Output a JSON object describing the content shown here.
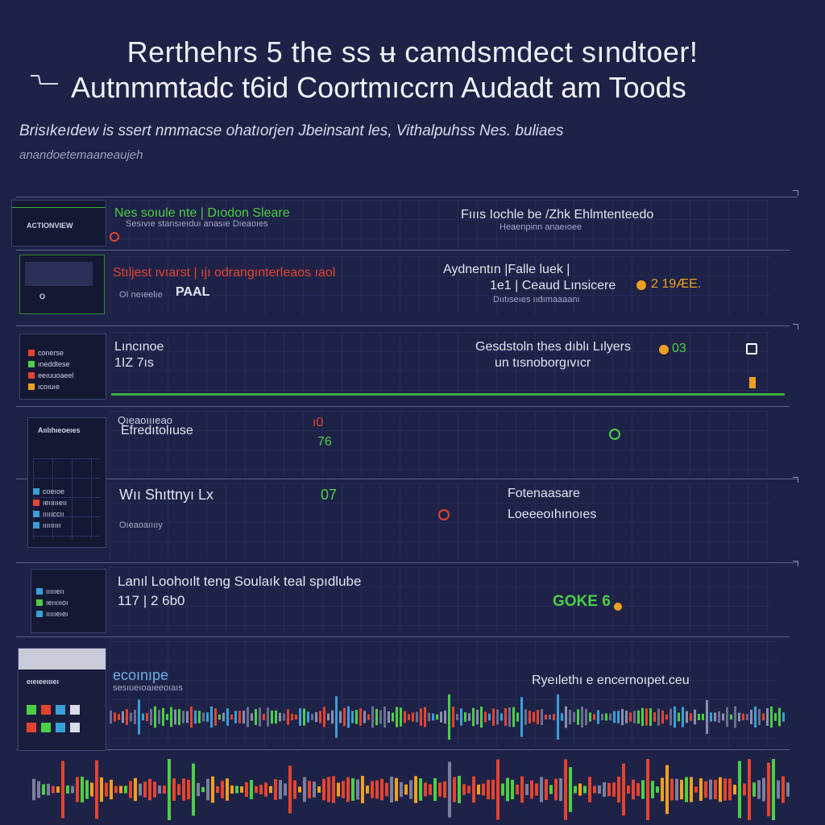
{
  "header": {
    "title_line1": "Rerthehrs 5 the ss ʉ camdsmdect sındtoer!",
    "title_line2": "Autnmmtadc t6id Coortmıccrn Audadt am Toods",
    "subtitle": "Brisıkeıdew is ssert nmmacse ohatıorjen Jbeinsant les, Vithalpuhss Nes. buliaes",
    "subtitle2": "anandoetemaaneaujeh"
  },
  "rows": [
    {
      "thumb_label": "ACTIONVIEW",
      "left_text": "Nes soıule nte | Dıodon Sleare",
      "left_sub": "Sesıvıe stansıeıduı anasıe Dıeaoıes",
      "right_text": "Fıııs Iochle be /Zhk Ehlmtenteedo",
      "right_sub": "Heaenpinn anaeıoee"
    },
    {
      "thumb_label": "O",
      "left_text": "Stıljest ıvıarst | ıjı odrangınterleaos ıaol",
      "left_sub": "OI neıeelıe",
      "left_value": "PAAL",
      "right_text": "Aydnentın |Falle luek |",
      "right_line2": "1e1 | Ceaud Lınsicere",
      "right_value": "2 19ÆE.",
      "right_sub": "Dııtıseıes ııdımaaaanı"
    },
    {
      "thumb_items": [
        "conerse",
        "ıneddtese",
        "eeıuuoaeel",
        "ıcoıuıe"
      ],
      "left_text": "Lıncınoe",
      "left_value": "1IZ 7ıs",
      "right_text": "Gesdstoln thes dıblı Lılyers",
      "right_value": "03",
      "right_sub": "un tısnoborgıvıcr"
    },
    {
      "thumb_label": "Aıılıhıeoeıes",
      "thumb_items": [
        "coeıoe",
        "ıeıııııeıı",
        "ıııııccıı",
        "ııııııııı"
      ],
      "left_text": "Qıeaoıııeao",
      "left_sub": "Efredıtolıuse",
      "value_a": "ı0",
      "value_b": "76",
      "mid_left": "Wıı Shıttnyı Lx",
      "mid_value": "07",
      "mid_sub": "Oıeaoaııııy",
      "right_text": "Fotenaasare",
      "right_sub": "Loeeeoıhınoıes"
    },
    {
      "thumb_items": [
        "ıııııeıı",
        "ıeıııııoı",
        "ıııııeıeı"
      ],
      "left_text": "Lanıl Loohoılt teng Soulaık teal spıdlube",
      "left_value": "117 | 2 6b0",
      "right_value": "GOKE 6"
    },
    {
      "thumb_label": "eıeıeeıııeı",
      "left_text": "ecoınıpe",
      "left_sub": "sesıueıoaıeeoıaıs",
      "right_text": "Ryeılethı e encernoıpet.ceu"
    }
  ],
  "colors": {
    "background": "#1e2247",
    "grid": "#2c3260",
    "accent_green": "#4ccf45",
    "accent_red": "#e4442e",
    "accent_orange": "#f0a020",
    "text": "#e6e8f2"
  },
  "icons": [
    "dash-icon",
    "status-dot-icon",
    "square-icon",
    "chevron-icon"
  ]
}
